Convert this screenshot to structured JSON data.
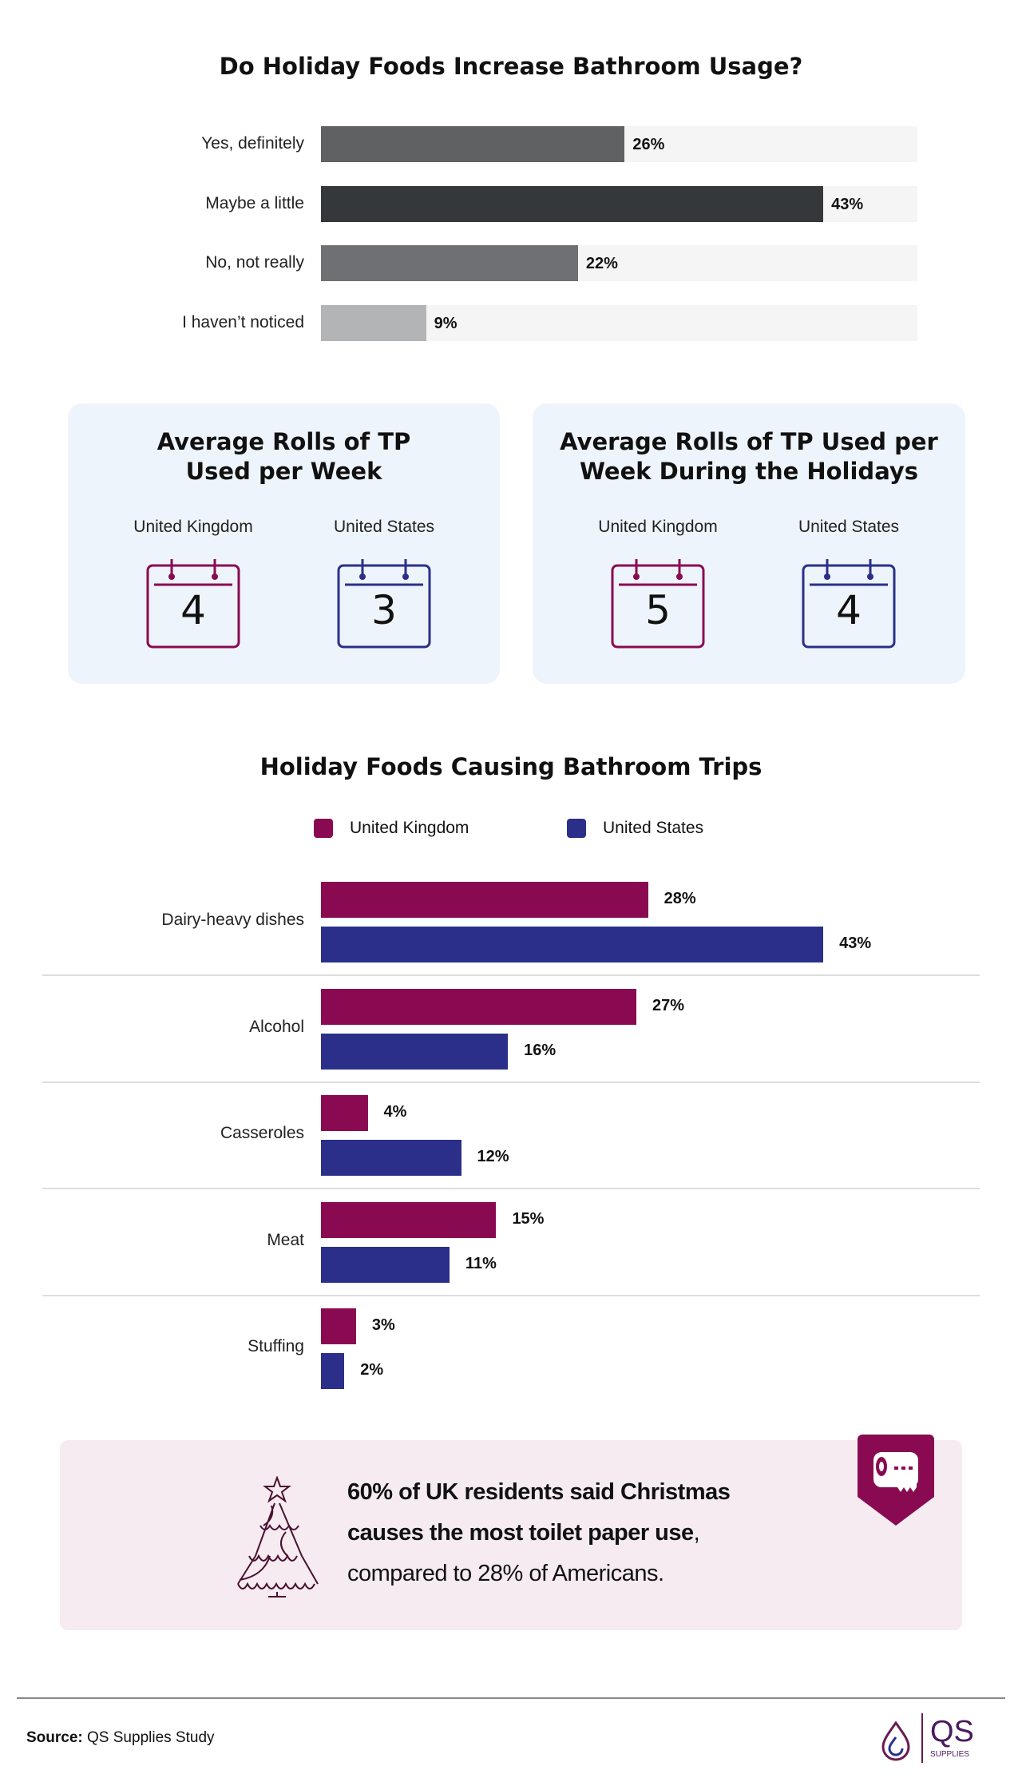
{
  "colors": {
    "uk": "#8a0a52",
    "us": "#2b2f8a"
  },
  "chart_data": [
    {
      "type": "bar",
      "title": "Do Holiday Foods Increase Bathroom Usage?",
      "categories": [
        "Yes, definitely",
        "Maybe a little",
        "No, not really",
        "I haven’t noticed"
      ],
      "values": [
        26,
        43,
        22,
        9
      ],
      "value_labels": [
        "26%",
        "43%",
        "22%",
        "9%"
      ],
      "colors": [
        "#5f6163",
        "#35383b",
        "#6e7073",
        "#b3b4b5"
      ],
      "orientation": "horizontal"
    },
    {
      "type": "bar",
      "title": "Holiday Foods Causing Bathroom Trips",
      "categories": [
        "Dairy-heavy dishes",
        "Alcohol",
        "Casseroles",
        "Meat",
        "Stuffing"
      ],
      "legend_position": "top",
      "series": [
        {
          "name": "United Kingdom",
          "values": [
            28,
            27,
            4,
            15,
            3
          ],
          "labels": [
            "28%",
            "27%",
            "4%",
            "15%",
            "3%"
          ]
        },
        {
          "name": "United States",
          "values": [
            43,
            16,
            12,
            11,
            2
          ],
          "labels": [
            "43%",
            "16%",
            "12%",
            "11%",
            "2%"
          ]
        }
      ],
      "orientation": "horizontal"
    }
  ],
  "cards": [
    {
      "title_lines": [
        "Average Rolls of TP",
        "Used per Week"
      ],
      "items": [
        {
          "country": "United Kingdom",
          "value": "4"
        },
        {
          "country": "United States",
          "value": "3"
        }
      ]
    },
    {
      "title_lines": [
        "Average Rolls of TP Used per",
        "Week During the Holidays"
      ],
      "items": [
        {
          "country": "United Kingdom",
          "value": "5"
        },
        {
          "country": "United States",
          "value": "4"
        }
      ]
    }
  ],
  "callout": {
    "line1": "60% of UK residents said Christmas",
    "line2": "causes the most toilet paper use",
    "line2_suffix": ",",
    "line3": "compared to 28% of Americans.",
    "icons": [
      "christmas-tree-icon",
      "toilet-paper-icon"
    ]
  },
  "footer": {
    "source_label": "Source:",
    "source_text": "QS Supplies Study",
    "logo_text": "QS",
    "logo_sub": "SUPPLIES"
  }
}
